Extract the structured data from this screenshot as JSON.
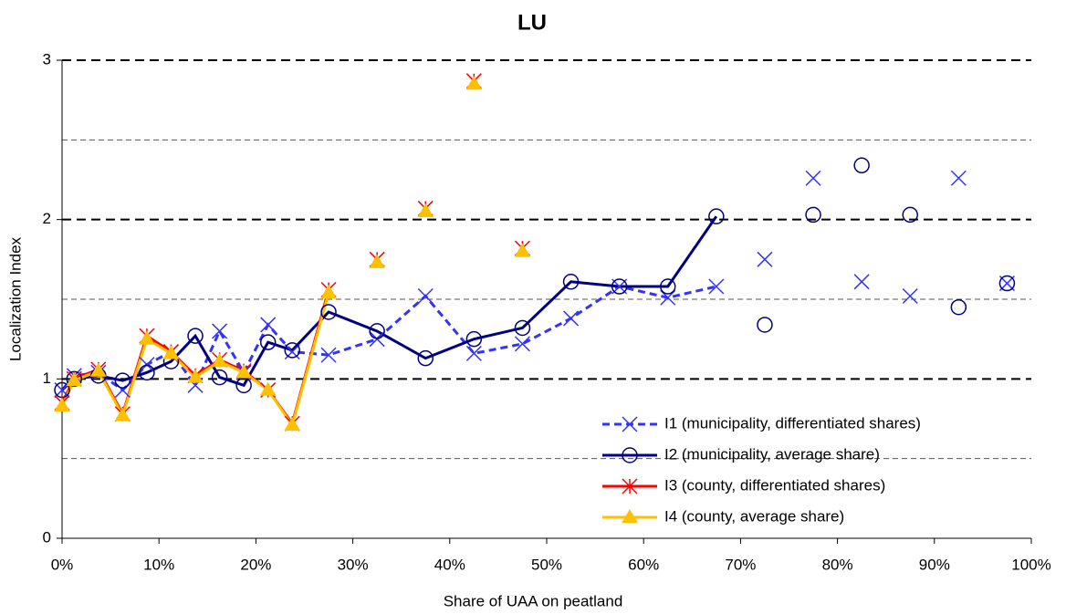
{
  "chart_data": {
    "type": "line",
    "title": "LU",
    "xlabel": "Share of UAA on peatland",
    "ylabel": "Localization Index",
    "x": [
      0,
      1.25,
      3.75,
      6.25,
      8.75,
      11.25,
      13.75,
      16.25,
      18.75,
      21.25,
      23.75,
      27.5,
      32.5,
      37.5,
      42.5,
      47.5,
      52.5,
      57.5,
      62.5,
      67.5,
      72.5,
      77.5,
      82.5,
      87.5,
      92.5,
      97.5
    ],
    "series": [
      {
        "name": "I1 (municipality, differentiated shares)",
        "color": "#3333ff",
        "marker": "cross",
        "dash": true,
        "line_end_x": 67.5,
        "values": [
          0.93,
          1.02,
          1.04,
          0.93,
          1.09,
          1.17,
          0.96,
          1.3,
          1.04,
          1.34,
          1.17,
          1.15,
          1.25,
          1.52,
          1.16,
          1.22,
          1.38,
          1.58,
          1.51,
          1.58,
          1.75,
          2.26,
          1.61,
          1.52,
          2.26,
          1.6
        ]
      },
      {
        "name": "I2 (municipality, average share)",
        "color": "#000080",
        "marker": "circle",
        "dash": false,
        "line_end_x": 67.5,
        "values": [
          0.93,
          1.0,
          1.02,
          0.99,
          1.04,
          1.11,
          1.27,
          1.01,
          0.96,
          1.23,
          1.18,
          1.42,
          1.3,
          1.13,
          1.25,
          1.32,
          1.61,
          1.58,
          1.58,
          2.02,
          1.34,
          2.03,
          2.34,
          2.03,
          1.45,
          1.6
        ]
      },
      {
        "name": "I3 (county,  differentiated shares)",
        "color": "#ff0000",
        "marker": "asterisk",
        "dash": false,
        "line_end_x": 27.5,
        "values": [
          0.85,
          1.0,
          1.06,
          0.78,
          1.27,
          1.17,
          1.02,
          1.12,
          1.05,
          0.93,
          0.72,
          1.56,
          1.75,
          2.07,
          2.87,
          1.82,
          null,
          null,
          null,
          null,
          null,
          null,
          null,
          null,
          null,
          null
        ]
      },
      {
        "name": "I4 (county, average share)",
        "color": "#ffc000",
        "marker": "triangle",
        "dash": false,
        "line_end_x": 27.5,
        "values": [
          0.83,
          0.99,
          1.05,
          0.77,
          1.25,
          1.16,
          1.01,
          1.11,
          1.04,
          0.93,
          0.71,
          1.54,
          1.73,
          2.05,
          2.85,
          1.8,
          null,
          null,
          null,
          null,
          null,
          null,
          null,
          null,
          null,
          null
        ]
      }
    ],
    "xlim": [
      0,
      100
    ],
    "xticks": [
      {
        "value": 0,
        "label": "0%"
      },
      {
        "value": 10,
        "label": "10%"
      },
      {
        "value": 20,
        "label": "20%"
      },
      {
        "value": 30,
        "label": "30%"
      },
      {
        "value": 40,
        "label": "40%"
      },
      {
        "value": 50,
        "label": "50%"
      },
      {
        "value": 60,
        "label": "60%"
      },
      {
        "value": 70,
        "label": "70%"
      },
      {
        "value": 80,
        "label": "80%"
      },
      {
        "value": 90,
        "label": "90%"
      },
      {
        "value": 100,
        "label": "100%"
      }
    ],
    "ylim": [
      0,
      3
    ],
    "yticks": [
      0,
      1,
      2,
      3
    ],
    "minor_yticks": [
      0.5,
      1.5,
      2.5
    ],
    "grid": true,
    "legend": "lower right"
  }
}
